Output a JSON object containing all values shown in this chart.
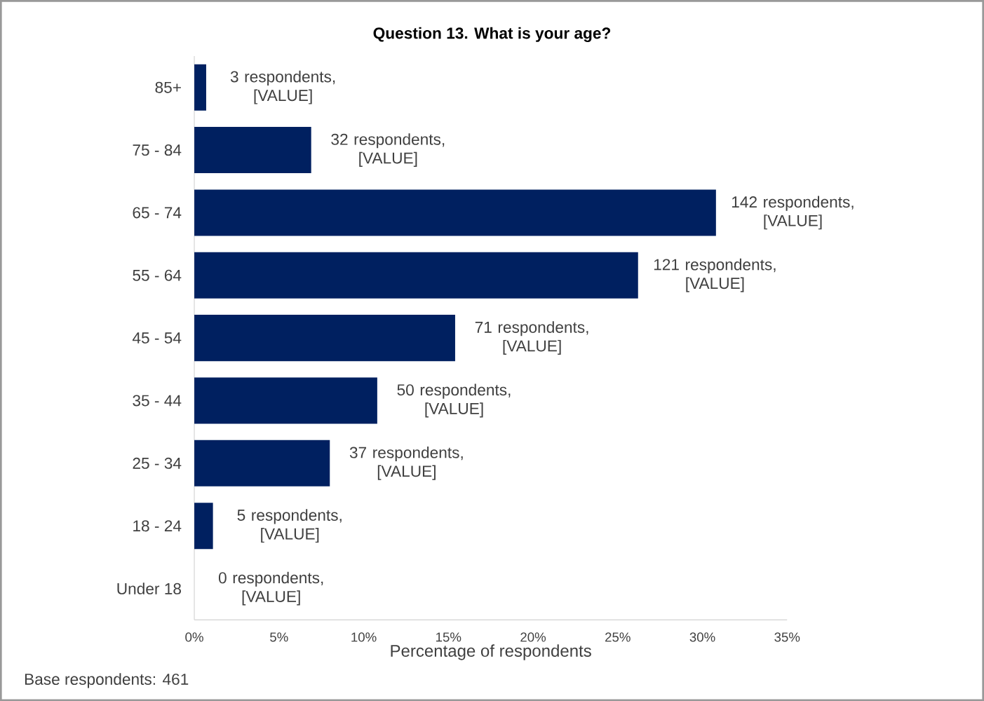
{
  "chart_data": {
    "type": "bar",
    "orientation": "horizontal",
    "title": "Question 13. What is your age?",
    "categories": [
      "85+",
      "75 - 84",
      "65 - 74",
      "55 - 64",
      "45 - 54",
      "35 - 44",
      "25 - 34",
      "18 - 24",
      "Under 18"
    ],
    "values": [
      0.7,
      6.9,
      30.8,
      26.2,
      15.4,
      10.8,
      8.0,
      1.1,
      0
    ],
    "color": "#002060",
    "xlabel": "Percentage of respondents",
    "xlim": [
      0,
      35
    ],
    "xticks": [
      {
        "value": 0,
        "label": "0%"
      },
      {
        "value": 5,
        "label": "5%"
      },
      {
        "value": 10,
        "label": "10%"
      },
      {
        "value": 15,
        "label": "15%"
      },
      {
        "value": 20,
        "label": "20%"
      },
      {
        "value": 25,
        "label": "25%"
      },
      {
        "value": 30,
        "label": "30%"
      },
      {
        "value": 35,
        "label": "35%"
      }
    ],
    "annotations": [
      {
        "text": "3 respondents, [VALUE]",
        "x": 0.7,
        "y": "85+"
      },
      {
        "text": "32 respondents, [VALUE]",
        "x": 6.9,
        "y": "75 - 84"
      },
      {
        "text": "142 respondents, [VALUE]",
        "x": 30.8,
        "y": "65 - 74"
      },
      {
        "text": "121 respondents, [VALUE]",
        "x": 26.2,
        "y": "55 - 64"
      },
      {
        "text": "71 respondents, [VALUE]",
        "x": 15.4,
        "y": "45 - 54"
      },
      {
        "text": "50 respondents, [VALUE]",
        "x": 10.8,
        "y": "35 - 44"
      },
      {
        "text": "37 respondents, [VALUE]",
        "x": 8.0,
        "y": "25 - 34"
      },
      {
        "text": "5 respondents, [VALUE]",
        "x": 1.1,
        "y": "18 - 24"
      },
      {
        "text": "0 respondents, [VALUE]",
        "x": 0,
        "y": "Under 18"
      },
      "Base respondents: 461"
    ],
    "grid": false
  }
}
